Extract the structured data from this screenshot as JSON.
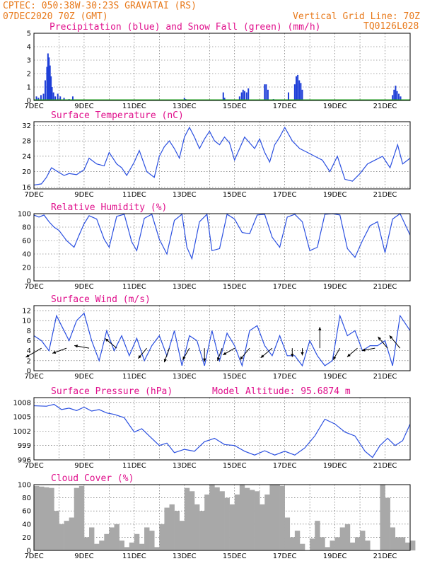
{
  "header": {
    "line1": "CPTEC:   050:38W-30:23S   GRAVATAI (RS)",
    "line2": "07DEC2020 70Z (GMT)",
    "grid_note": "Vertical Grid Line: 70Z",
    "model_id": "TQ0126L028"
  },
  "colors": {
    "series": "#2a4fe0",
    "precip": "#1f3fd8",
    "snow": "#1ea81e",
    "cloud": "#a8a8a8",
    "title": "#e0108c",
    "header": "#e87a1c"
  },
  "chart_data": [
    {
      "id": "precip",
      "type": "bar",
      "title": "Precipitation (blue) and Snow Fall (green) (mm/h)",
      "x_labels": [
        "7DEC",
        "9DEC",
        "11DEC",
        "13DEC",
        "15DEC",
        "17DEC",
        "19DEC",
        "21DEC"
      ],
      "x_range": [
        0,
        15
      ],
      "ylim": [
        0,
        5
      ],
      "yticks": [
        0,
        1,
        2,
        3,
        4,
        5
      ],
      "series": [
        {
          "name": "Precipitation",
          "x": [
            0.1,
            0.18,
            0.28,
            0.38,
            0.45,
            0.52,
            0.56,
            0.6,
            0.64,
            0.68,
            0.72,
            0.78,
            0.85,
            0.95,
            1.05,
            1.2,
            1.4,
            1.55,
            6.0,
            6.05,
            7.55,
            7.6,
            8.2,
            8.28,
            8.34,
            8.4,
            8.48,
            8.55,
            9.2,
            9.26,
            9.33,
            9.55,
            10.15,
            10.4,
            10.46,
            10.52,
            10.58,
            10.64,
            10.7,
            14.3,
            14.36,
            14.42,
            14.48,
            14.55,
            14.62
          ],
          "values": [
            0.3,
            0.2,
            0.4,
            0.5,
            1.5,
            2.5,
            3.5,
            3.2,
            2.6,
            1.8,
            1.0,
            0.6,
            0.3,
            0.5,
            0.3,
            0.2,
            0.1,
            0.3,
            0.2,
            0.1,
            0.6,
            0.2,
            0.3,
            0.6,
            0.8,
            0.7,
            0.6,
            0.9,
            1.2,
            1.2,
            0.8,
            0.1,
            0.6,
            1.2,
            1.8,
            1.9,
            1.5,
            1.3,
            0.8,
            0.4,
            0.8,
            1.1,
            0.7,
            0.5,
            0.3
          ]
        },
        {
          "name": "Snow Fall",
          "x": [],
          "values": []
        }
      ]
    },
    {
      "id": "temp",
      "type": "line",
      "title": "Surface Temperature (nC)",
      "x_labels": [
        "7DEC",
        "9DEC",
        "11DEC",
        "13DEC",
        "15DEC",
        "17DEC",
        "19DEC",
        "21DEC"
      ],
      "x_range": [
        0,
        15
      ],
      "ylim": [
        15.5,
        33
      ],
      "yticks": [
        16,
        20,
        24,
        28,
        32
      ],
      "x": [
        0,
        0.3,
        0.5,
        0.7,
        1.0,
        1.2,
        1.4,
        1.7,
        2.0,
        2.2,
        2.5,
        2.8,
        3.0,
        3.3,
        3.5,
        3.7,
        4.0,
        4.2,
        4.5,
        4.8,
        5.0,
        5.2,
        5.4,
        5.6,
        5.8,
        6.0,
        6.2,
        6.4,
        6.6,
        6.8,
        7.0,
        7.2,
        7.4,
        7.6,
        7.8,
        8.0,
        8.2,
        8.4,
        8.6,
        8.8,
        9.0,
        9.2,
        9.4,
        9.6,
        9.8,
        10.0,
        10.3,
        10.6,
        10.9,
        11.2,
        11.5,
        11.8,
        12.1,
        12.4,
        12.7,
        13.0,
        13.3,
        13.6,
        13.9,
        14.2,
        14.5,
        14.7,
        15.0
      ],
      "values": [
        16.5,
        16.8,
        18.5,
        21,
        19.8,
        19,
        19.5,
        19.2,
        20.5,
        23.5,
        22,
        21.5,
        25,
        22,
        21,
        19,
        22.5,
        25.5,
        20,
        18.5,
        24,
        26.5,
        28,
        26,
        23.5,
        29,
        31.5,
        29,
        26,
        28.5,
        30.5,
        28,
        27,
        29,
        27.5,
        23,
        26,
        29,
        27.5,
        26,
        28.5,
        25,
        22.5,
        27,
        29,
        31.5,
        28,
        26,
        25,
        24,
        23,
        20,
        24,
        18,
        17.5,
        19.5,
        22,
        23,
        24,
        21,
        27,
        22,
        23.5
      ]
    },
    {
      "id": "rh",
      "type": "line",
      "title": "Relative Humidity (%)",
      "x_labels": [
        "7DEC",
        "9DEC",
        "11DEC",
        "13DEC",
        "15DEC",
        "17DEC",
        "19DEC",
        "21DEC"
      ],
      "x_range": [
        0,
        15
      ],
      "ylim": [
        0,
        100
      ],
      "yticks": [
        0,
        20,
        40,
        60,
        80,
        100
      ],
      "x": [
        0,
        0.2,
        0.4,
        0.6,
        0.8,
        1.0,
        1.3,
        1.6,
        1.8,
        2.0,
        2.2,
        2.5,
        2.8,
        3.0,
        3.3,
        3.6,
        3.9,
        4.1,
        4.4,
        4.7,
        5.0,
        5.3,
        5.6,
        5.9,
        6.1,
        6.3,
        6.6,
        6.9,
        7.1,
        7.4,
        7.7,
        8.0,
        8.3,
        8.6,
        8.9,
        9.2,
        9.5,
        9.8,
        10.1,
        10.4,
        10.7,
        11.0,
        11.3,
        11.6,
        11.9,
        12.2,
        12.5,
        12.8,
        13.1,
        13.4,
        13.7,
        14.0,
        14.3,
        14.6,
        15.0
      ],
      "values": [
        98,
        95,
        98,
        88,
        80,
        75,
        60,
        50,
        68,
        85,
        97,
        92,
        62,
        50,
        96,
        99,
        58,
        45,
        93,
        99,
        62,
        40,
        90,
        99,
        50,
        33,
        88,
        99,
        45,
        48,
        99,
        92,
        72,
        70,
        98,
        99,
        65,
        50,
        95,
        99,
        88,
        45,
        50,
        99,
        100,
        98,
        48,
        35,
        60,
        82,
        88,
        42,
        92,
        100,
        68
      ]
    },
    {
      "id": "wind",
      "type": "line",
      "title": "Surface Wind (m/s)",
      "x_labels": [
        "7DEC",
        "9DEC",
        "11DEC",
        "13DEC",
        "15DEC",
        "17DEC",
        "19DEC",
        "21DEC"
      ],
      "x_range": [
        0,
        15
      ],
      "ylim": [
        0,
        13
      ],
      "yticks": [
        0,
        2,
        4,
        6,
        8,
        10,
        12
      ],
      "x": [
        0,
        0.3,
        0.6,
        0.9,
        1.1,
        1.4,
        1.7,
        2.0,
        2.3,
        2.6,
        2.9,
        3.2,
        3.5,
        3.8,
        4.1,
        4.4,
        4.7,
        5.0,
        5.3,
        5.6,
        5.9,
        6.2,
        6.5,
        6.8,
        7.1,
        7.4,
        7.7,
        8.0,
        8.3,
        8.6,
        8.9,
        9.2,
        9.5,
        9.8,
        10.1,
        10.4,
        10.7,
        11.0,
        11.3,
        11.6,
        11.9,
        12.2,
        12.5,
        12.8,
        13.1,
        13.4,
        13.7,
        14.0,
        14.3,
        14.6,
        15.0
      ],
      "values": [
        7,
        6,
        4,
        11,
        9,
        6,
        10,
        11.5,
        6,
        2,
        8,
        4,
        7,
        3,
        6.5,
        2,
        5,
        7,
        3,
        8,
        1,
        7,
        6,
        1,
        8,
        2,
        7.5,
        5,
        1,
        8,
        9,
        5,
        3,
        7,
        3,
        3,
        1,
        6,
        3,
        1,
        2,
        11,
        7,
        8,
        4,
        5,
        5,
        6,
        1,
        11,
        8
      ],
      "barbs": {
        "x": [
          0.3,
          1.3,
          2.2,
          3.3,
          4.5,
          5.4,
          6.2,
          6.8,
          7.5,
          8.0,
          8.6,
          9.5,
          10.3,
          10.7,
          11.4,
          12.2,
          12.9,
          13.6,
          14.1,
          14.6
        ],
        "speed": [
          8,
          6,
          6,
          6,
          5,
          6,
          5,
          5,
          5,
          5,
          6,
          6,
          2,
          1,
          10,
          5,
          5,
          5,
          6,
          7
        ],
        "dir_deg": [
          240,
          250,
          280,
          310,
          220,
          200,
          210,
          180,
          200,
          240,
          220,
          230,
          180,
          180,
          0,
          210,
          230,
          260,
          320,
          320
        ]
      }
    },
    {
      "id": "pres",
      "type": "line",
      "title": "Surface Pressure (hPa)",
      "subtitle": "Model Altitude: 95.6874 m",
      "x_labels": [
        "7DEC",
        "9DEC",
        "11DEC",
        "13DEC",
        "15DEC",
        "17DEC",
        "19DEC",
        "21DEC"
      ],
      "x_range": [
        0,
        15
      ],
      "ylim": [
        996,
        1009
      ],
      "yticks": [
        996,
        999,
        1002,
        1005,
        1008
      ],
      "x": [
        0,
        0.5,
        0.8,
        1.1,
        1.4,
        1.7,
        2.0,
        2.3,
        2.6,
        2.9,
        3.2,
        3.6,
        4.0,
        4.3,
        4.6,
        5.0,
        5.3,
        5.6,
        6.0,
        6.4,
        6.8,
        7.2,
        7.6,
        8.0,
        8.4,
        8.8,
        9.2,
        9.6,
        10.0,
        10.4,
        10.8,
        11.2,
        11.6,
        12.0,
        12.4,
        12.8,
        13.2,
        13.5,
        13.8,
        14.1,
        14.4,
        14.7,
        15.0
      ],
      "values": [
        1007.3,
        1007.2,
        1007.6,
        1006.5,
        1006.8,
        1006.3,
        1007.0,
        1006.2,
        1006.5,
        1005.8,
        1005.5,
        1004.8,
        1001.8,
        1002.5,
        1001.0,
        999.0,
        999.5,
        997.5,
        998.2,
        997.8,
        999.8,
        1000.5,
        999.2,
        999.0,
        997.8,
        997.0,
        997.9,
        997.0,
        997.8,
        997.0,
        998.5,
        1001.0,
        1004.5,
        1003.5,
        1001.8,
        1001.0,
        997.8,
        996.5,
        999.0,
        1000.5,
        999.0,
        1000.0,
        1003.5
      ]
    },
    {
      "id": "cloud",
      "type": "bar",
      "title": "Cloud Cover (%)",
      "x_labels": [
        "7DEC",
        "9DEC",
        "11DEC",
        "13DEC",
        "15DEC",
        "17DEC",
        "19DEC",
        "21DEC"
      ],
      "x_range": [
        0,
        15
      ],
      "ylim": [
        0,
        100
      ],
      "yticks": [
        0,
        20,
        40,
        60,
        80,
        100
      ],
      "x": [
        0,
        0.2,
        0.4,
        0.6,
        0.8,
        1.0,
        1.2,
        1.4,
        1.6,
        1.8,
        2.0,
        2.2,
        2.4,
        2.6,
        2.8,
        3.0,
        3.2,
        3.4,
        3.6,
        3.8,
        4.0,
        4.2,
        4.4,
        4.6,
        4.8,
        5.0,
        5.2,
        5.4,
        5.6,
        5.8,
        6.0,
        6.2,
        6.4,
        6.6,
        6.8,
        7.0,
        7.2,
        7.4,
        7.6,
        7.8,
        8.0,
        8.2,
        8.4,
        8.6,
        8.8,
        9.0,
        9.2,
        9.4,
        9.6,
        9.8,
        10.0,
        10.2,
        10.4,
        10.6,
        10.8,
        11.0,
        11.2,
        11.4,
        11.6,
        11.8,
        12.0,
        12.2,
        12.4,
        12.6,
        12.8,
        13.0,
        13.2,
        13.4,
        13.6,
        13.8,
        14.0,
        14.2,
        14.4,
        14.6,
        14.8,
        15.0
      ],
      "values": [
        98,
        97,
        96,
        95,
        60,
        40,
        45,
        50,
        95,
        98,
        20,
        35,
        10,
        15,
        25,
        35,
        40,
        15,
        5,
        12,
        25,
        10,
        35,
        30,
        5,
        40,
        65,
        70,
        60,
        45,
        95,
        90,
        70,
        60,
        85,
        100,
        96,
        90,
        80,
        70,
        85,
        100,
        95,
        92,
        90,
        70,
        85,
        100,
        100,
        98,
        50,
        20,
        30,
        10,
        0,
        18,
        45,
        20,
        5,
        15,
        20,
        35,
        40,
        12,
        20,
        30,
        15,
        0,
        0,
        100,
        80,
        35,
        20,
        20,
        12,
        15
      ]
    }
  ]
}
